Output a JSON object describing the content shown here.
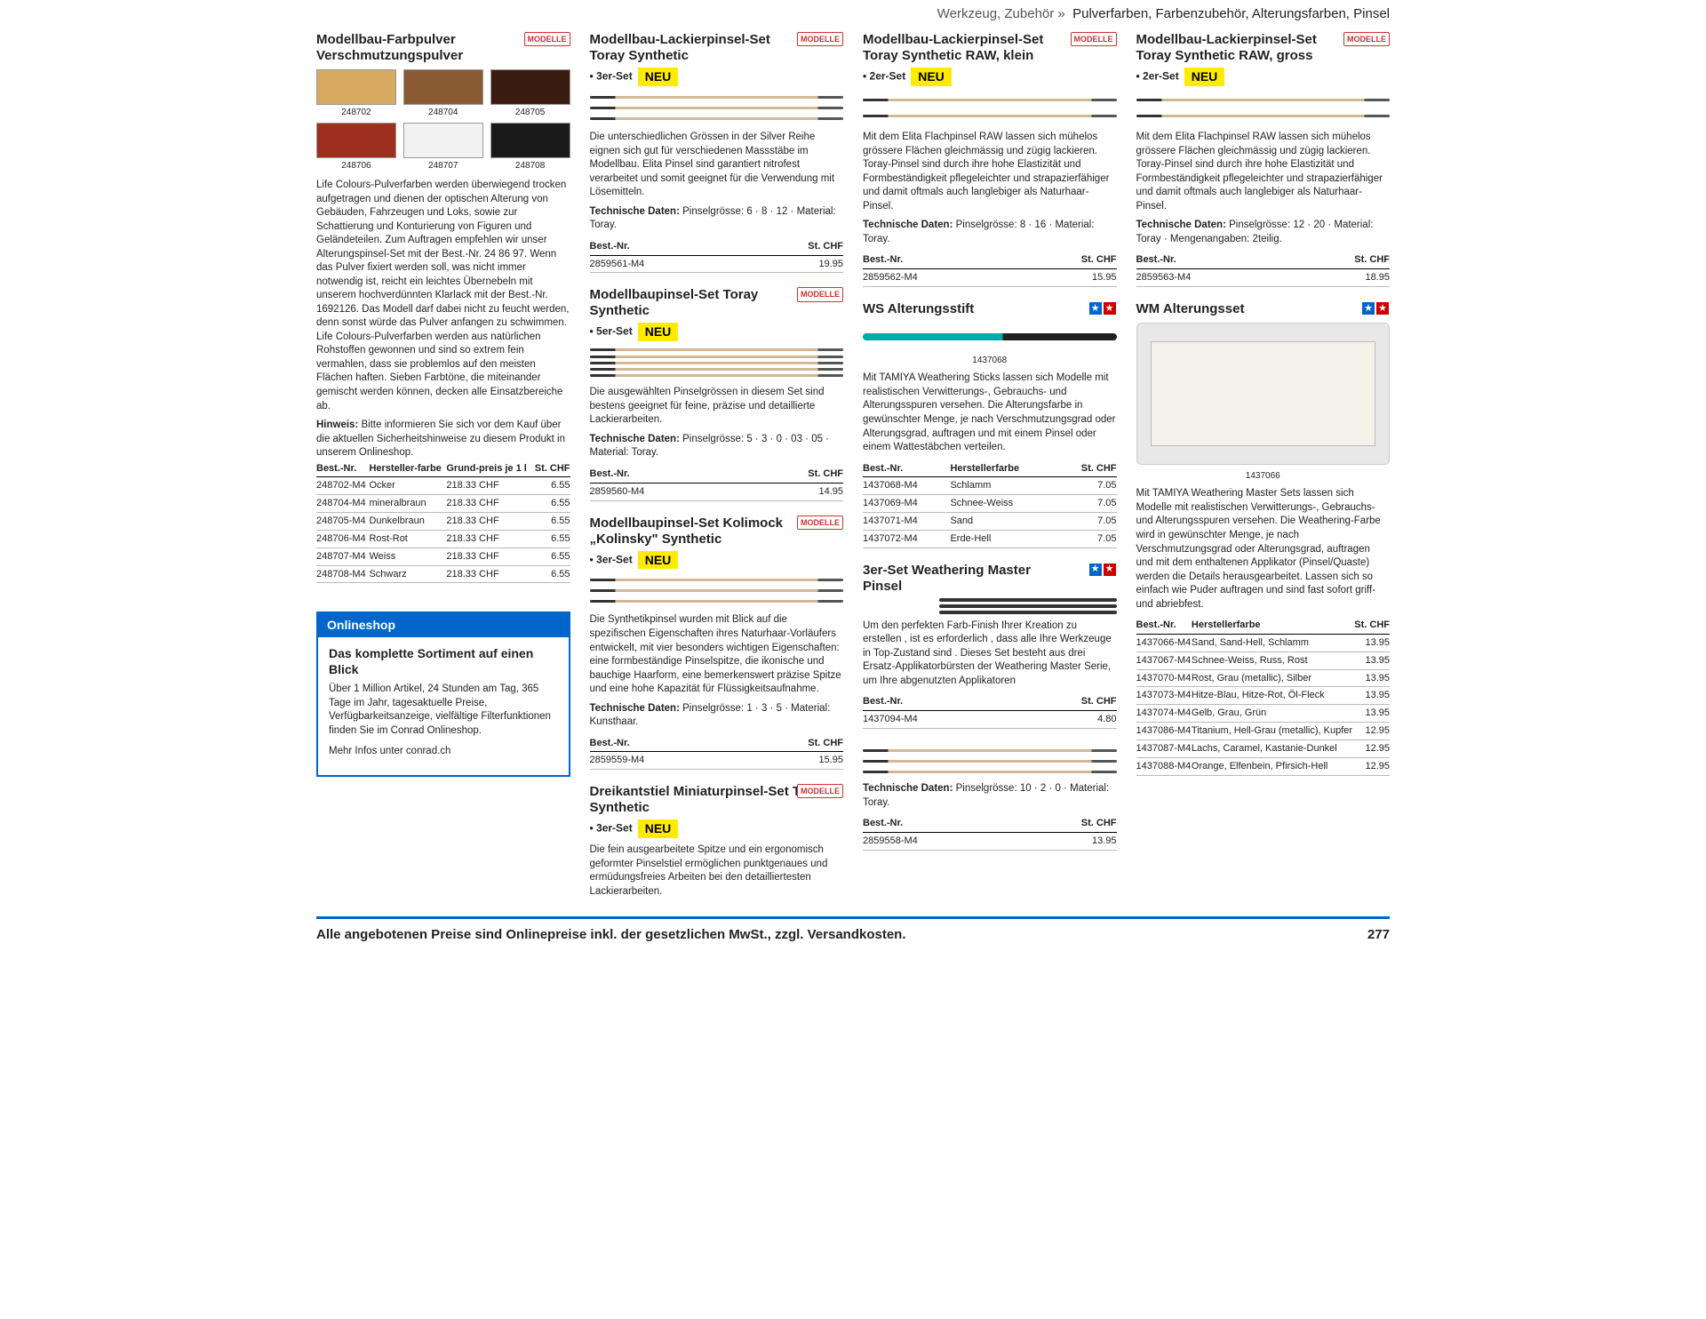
{
  "breadcrumb": {
    "parent": "Werkzeug, Zubehör  »",
    "current": "Pulverfarben, Farbenzubehör, Alterungsfarben, Pinsel"
  },
  "neu_label": "NEU",
  "col1": {
    "p1": {
      "title": "Modellbau-Farbpulver Verschmutzungspulver",
      "brand": "MODELLE",
      "swatches": [
        {
          "id": "248702",
          "color": "#d8a960"
        },
        {
          "id": "248704",
          "color": "#8a5a32"
        },
        {
          "id": "248705",
          "color": "#3a1d10"
        },
        {
          "id": "248706",
          "color": "#9e2f1e"
        },
        {
          "id": "248707",
          "color": "#f2f2f2"
        },
        {
          "id": "248708",
          "color": "#1a1a1a"
        }
      ],
      "desc": "Life Colours-Pulverfarben werden überwiegend trocken aufgetragen und dienen der optischen Alterung von Gebäuden, Fahrzeugen und Loks, sowie zur Schattierung und Konturierung von Figuren und Geländeteilen. Zum Auftragen empfehlen wir unser Alterungspinsel-Set mit der Best.-Nr. 24 86 97. Wenn das Pulver fixiert werden soll, was nicht immer notwendig ist, reicht ein leichtes Übernebeln mit unserem hochverdünnten Klarlack mit der Best.-Nr. 1692126. Das Modell darf dabei nicht zu feucht werden, denn sonst würde das Pulver anfangen zu schwimmen. Life Colours-Pulverfarben werden aus natürlichen Rohstoffen gewonnen und sind so extrem fein vermahlen, dass sie problemlos auf den meisten Flächen haften. Sieben Farbtöne, die miteinander gemischt werden können, decken alle Einsatzbereiche ab.",
      "hint_label": "Hinweis:",
      "hint": "Bitte informieren Sie sich vor dem Kauf über die aktuellen Sicherheitshinweise zu diesem Produkt in unserem Onlineshop.",
      "table_hdr": [
        "Best.-Nr.",
        "Hersteller-farbe",
        "Grund-preis je 1 l",
        "St. CHF"
      ],
      "rows": [
        [
          "248702-M4",
          "Ocker",
          "218.33 CHF",
          "6.55"
        ],
        [
          "248704-M4",
          "mineralbraun",
          "218.33 CHF",
          "6.55"
        ],
        [
          "248705-M4",
          "Dunkelbraun",
          "218.33 CHF",
          "6.55"
        ],
        [
          "248706-M4",
          "Rost-Rot",
          "218.33 CHF",
          "6.55"
        ],
        [
          "248707-M4",
          "Weiss",
          "218.33 CHF",
          "6.55"
        ],
        [
          "248708-M4",
          "Schwarz",
          "218.33 CHF",
          "6.55"
        ]
      ]
    },
    "shop": {
      "hdr": "Onlineshop",
      "title": "Das komplette Sortiment auf einen Blick",
      "body": "Über 1 Million Artikel, 24 Stunden am Tag, 365 Tage im Jahr, tagesaktuelle Preise, Verfügbarkeitsanzeige, vielfältige Filterfunktionen finden Sie im Conrad Onlineshop.",
      "more": "Mehr Infos unter conrad.ch"
    }
  },
  "col2": {
    "p1": {
      "title": "Modellbau-Lackierpinsel-Set Toray Synthetic",
      "brand": "MODELLE",
      "sub": "• 3er-Set",
      "desc": "Die unterschiedlichen Grössen in der Silver Reihe eignen sich gut für verschiedenen Massstäbe im Modellbau. Elita Pinsel sind garantiert nitrofest verarbeitet und somit geeignet für die Verwendung mit Lösemitteln.",
      "tech_label": "Technische Daten:",
      "tech": "Pinselgrösse: 6 · 8 · 12 · Material: Toray.",
      "hdr": [
        "Best.-Nr.",
        "St. CHF"
      ],
      "rows": [
        [
          "2859561-M4",
          "19.95"
        ]
      ]
    },
    "p2": {
      "title": "Modellbaupinsel-Set Toray Synthetic",
      "brand": "MODELLE",
      "sub": "• 5er-Set",
      "desc": "Die ausgewählten Pinselgrössen in diesem Set sind bestens geeignet für feine, präzise und detaillierte Lackierarbeiten.",
      "tech_label": "Technische Daten:",
      "tech": "Pinselgrösse: 5 · 3 · 0 · 03 · 05 · Material: Toray.",
      "hdr": [
        "Best.-Nr.",
        "St. CHF"
      ],
      "rows": [
        [
          "2859560-M4",
          "14.95"
        ]
      ]
    },
    "p3": {
      "title": "Modellbaupinsel-Set Kolimock „Kolinsky\" Synthetic",
      "brand": "MODELLE",
      "sub": "• 3er-Set",
      "desc": "Die Synthetikpinsel wurden mit Blick auf die spezifischen Eigenschaften ihres Naturhaar-Vorläufers entwickelt, mit vier besonders wichtigen Eigenschaften: eine formbeständige Pinselspitze, die ikonische und bauchige Haarform, eine bemerkenswert präzise Spitze und eine hohe Kapazität für Flüssigkeitsaufnahme.",
      "tech_label": "Technische Daten:",
      "tech": "Pinselgrösse: 1 · 3 · 5 · Material: Kunsthaar.",
      "hdr": [
        "Best.-Nr.",
        "St. CHF"
      ],
      "rows": [
        [
          "2859559-M4",
          "15.95"
        ]
      ]
    },
    "p4": {
      "title": "Dreikantstiel Miniaturpinsel-Set Toray Synthetic",
      "brand": "MODELLE",
      "sub": "• 3er-Set",
      "desc": "Die fein ausgearbeitete Spitze und ein ergonomisch geformter Pinselstiel ermöglichen punktgenaues und ermüdungsfreies Arbeiten bei den detailliertesten Lackierarbeiten."
    }
  },
  "col3": {
    "p1": {
      "title": "Modellbau-Lackierpinsel-Set Toray Synthetic RAW, klein",
      "brand": "MODELLE",
      "sub": "• 2er-Set",
      "desc": "Mit dem Elita Flachpinsel RAW lassen sich mühelos grössere Flächen gleichmässig und zügig lackieren. Toray-Pinsel sind durch ihre hohe Elastizität und Formbeständigkeit pflegeleichter und strapazierfähiger und damit oftmals auch langlebiger als Naturhaar-Pinsel.",
      "tech_label": "Technische Daten:",
      "tech": "Pinselgrösse: 8 · 16 · Material: Toray.",
      "hdr": [
        "Best.-Nr.",
        "St. CHF"
      ],
      "rows": [
        [
          "2859562-M4",
          "15.95"
        ]
      ]
    },
    "p2": {
      "title": "WS Alterungsstift",
      "img_id": "1437068",
      "desc": "Mit TAMIYA Weathering Sticks lassen sich Modelle mit realistischen Verwitterungs-, Gebrauchs- und Alterungsspuren versehen. Die Alterungsfarbe in gewünschter Menge, je nach Verschmutzungsgrad oder Alterungsgrad, auftragen und mit einem Pinsel oder einem Wattestäbchen verteilen.",
      "hdr": [
        "Best.-Nr.",
        "Herstellerfarbe",
        "St. CHF"
      ],
      "rows": [
        [
          "1437068-M4",
          "Schlamm",
          "7.05"
        ],
        [
          "1437069-M4",
          "Schnee-Weiss",
          "7.05"
        ],
        [
          "1437071-M4",
          "Sand",
          "7.05"
        ],
        [
          "1437072-M4",
          "Erde-Hell",
          "7.05"
        ]
      ]
    },
    "p3": {
      "title": "3er-Set Weathering Master Pinsel",
      "desc": "Um den perfekten Farb-Finish Ihrer Kreation zu erstellen , ist es erforderlich , dass alle Ihre Werkzeuge in Top-Zustand sind . Dieses Set besteht aus drei Ersatz-Applikatorbürsten der Weathering Master Serie, um Ihre abgenutzten Applikatoren",
      "hdr": [
        "Best.-Nr.",
        "St. CHF"
      ],
      "rows": [
        [
          "1437094-M4",
          "4.80"
        ]
      ]
    },
    "p4": {
      "tech_label": "Technische Daten:",
      "tech": "Pinselgrösse: 10 · 2 · 0 · Material: Toray.",
      "hdr": [
        "Best.-Nr.",
        "St. CHF"
      ],
      "rows": [
        [
          "2859558-M4",
          "13.95"
        ]
      ]
    }
  },
  "col4": {
    "p1": {
      "title": "Modellbau-Lackierpinsel-Set Toray Synthetic RAW, gross",
      "brand": "MODELLE",
      "sub": "• 2er-Set",
      "desc": "Mit dem Elita Flachpinsel RAW lassen sich mühelos grössere Flächen gleichmässig und zügig lackieren. Toray-Pinsel sind durch ihre hohe Elastizität und Formbeständigkeit pflegeleichter und strapazierfähiger und damit oftmals auch langlebiger als Naturhaar-Pinsel.",
      "tech_label": "Technische Daten:",
      "tech": "Pinselgrösse: 12 · 20 · Material: Toray · Mengenangaben: 2teilig.",
      "hdr": [
        "Best.-Nr.",
        "St. CHF"
      ],
      "rows": [
        [
          "2859563-M4",
          "18.95"
        ]
      ]
    },
    "p2": {
      "title": "WM Alterungsset",
      "img_id": "1437066",
      "desc": "Mit TAMIYA Weathering Master Sets lassen sich Modelle mit realistischen Verwitterungs-, Gebrauchs- und Alterungsspuren versehen. Die Weathering-Farbe wird in gewünschter Menge, je nach Verschmutzungsgrad oder Alterungsgrad, auftragen und mit dem enthaltenen Applikator (Pinsel/Quaste) werden die Details herausgearbeitet. Lassen sich so einfach wie Puder auftragen und sind fast sofort griff- und abriebfest.",
      "hdr": [
        "Best.-Nr.",
        "Herstellerfarbe",
        "St. CHF"
      ],
      "rows": [
        [
          "1437066-M4",
          "Sand, Sand-Hell, Schlamm",
          "13.95"
        ],
        [
          "1437067-M4",
          "Schnee-Weiss, Russ, Rost",
          "13.95"
        ],
        [
          "1437070-M4",
          "Rost, Grau (metallic), Silber",
          "13.95"
        ],
        [
          "1437073-M4",
          "Hitze-Blau, Hitze-Rot, Öl-Fleck",
          "13.95"
        ],
        [
          "1437074-M4",
          "Gelb, Grau, Grün",
          "13.95"
        ],
        [
          "1437086-M4",
          "Titanium, Hell-Grau (metallic), Kupfer",
          "12.95"
        ],
        [
          "1437087-M4",
          "Lachs, Caramel, Kastanie-Dunkel",
          "12.95"
        ],
        [
          "1437088-M4",
          "Orange, Elfenbein, Pfirsich-Hell",
          "12.95"
        ]
      ]
    }
  },
  "footer": {
    "text": "Alle angebotenen Preise sind Onlinepreise inkl. der gesetzlichen MwSt., zzgl. Versandkosten.",
    "page": "277"
  }
}
